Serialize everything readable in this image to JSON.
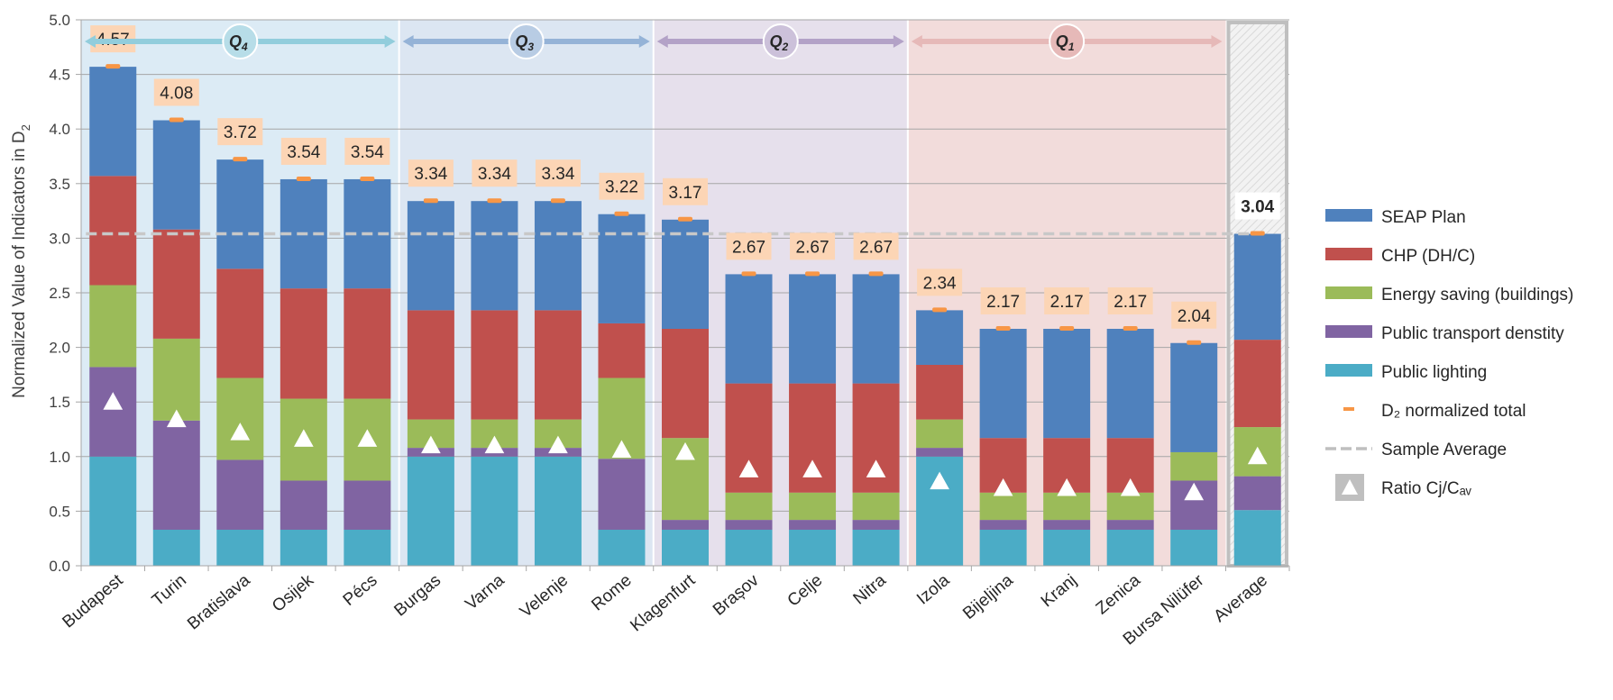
{
  "chart_data": {
    "type": "bar",
    "stacked": true,
    "ylabel_main": "Normalized Value of Indicators in D",
    "ylabel_sub": "2",
    "ylim": [
      0,
      5
    ],
    "yticks": [
      "0.0",
      "0.5",
      "1.0",
      "1.5",
      "2.0",
      "2.5",
      "3.0",
      "3.5",
      "4.0",
      "4.5",
      "5.0"
    ],
    "grid": true,
    "legend_position": "right",
    "categories": [
      "Budapest",
      "Turin",
      "Bratislava",
      "Osijek",
      "Pécs",
      "Burgas",
      "Varna",
      "Velenje",
      "Rome",
      "Klagenfurt",
      "Brașov",
      "Celje",
      "Nitra",
      "Izola",
      "Bijeljina",
      "Kranj",
      "Zenica",
      "Bursa Nilüfer",
      "Average"
    ],
    "series": [
      {
        "name": "Public lighting",
        "color": "#4bacc6",
        "values": [
          1.0,
          0.33,
          0.33,
          0.33,
          0.33,
          1.0,
          1.0,
          1.0,
          0.33,
          0.33,
          0.33,
          0.33,
          0.33,
          1.0,
          0.33,
          0.33,
          0.33,
          0.33,
          0.51
        ]
      },
      {
        "name": "Public transport denstity",
        "color": "#8064a2",
        "values": [
          0.82,
          1.0,
          0.64,
          0.45,
          0.45,
          0.08,
          0.08,
          0.08,
          0.65,
          0.09,
          0.09,
          0.09,
          0.09,
          0.08,
          0.09,
          0.09,
          0.09,
          0.45,
          0.31
        ]
      },
      {
        "name": "Energy saving (buildings)",
        "color": "#9bbb59",
        "values": [
          0.75,
          0.75,
          0.75,
          0.75,
          0.75,
          0.26,
          0.26,
          0.26,
          0.74,
          0.75,
          0.25,
          0.25,
          0.25,
          0.26,
          0.25,
          0.25,
          0.25,
          0.26,
          0.45
        ]
      },
      {
        "name": "CHP (DH/C)",
        "color": "#c0504d",
        "values": [
          1.0,
          1.0,
          1.0,
          1.01,
          1.01,
          1.0,
          1.0,
          1.0,
          0.5,
          1.0,
          1.0,
          1.0,
          1.0,
          0.5,
          0.5,
          0.5,
          0.5,
          0.0,
          0.8
        ]
      },
      {
        "name": "SEAP Plan",
        "color": "#4f81bd",
        "values": [
          1.0,
          1.0,
          1.0,
          1.0,
          1.0,
          1.0,
          1.0,
          1.0,
          1.0,
          1.0,
          1.0,
          1.0,
          1.0,
          0.5,
          1.0,
          1.0,
          1.0,
          1.0,
          0.97
        ]
      }
    ],
    "totals": [
      4.57,
      4.08,
      3.72,
      3.54,
      3.54,
      3.34,
      3.34,
      3.34,
      3.22,
      3.17,
      2.67,
      2.67,
      2.67,
      2.34,
      2.17,
      2.17,
      2.17,
      2.04,
      3.04
    ],
    "total_labels": [
      "4.57",
      "4.08",
      "3.72",
      "3.54",
      "3.54",
      "3.34",
      "3.34",
      "3.34",
      "3.22",
      "3.17",
      "2.67",
      "2.67",
      "2.67",
      "2.34",
      "2.17",
      "2.17",
      "2.17",
      "2.04",
      "3.04"
    ],
    "ratio_cj_cav": [
      1.5,
      1.34,
      1.22,
      1.16,
      1.16,
      1.1,
      1.1,
      1.1,
      1.06,
      1.04,
      0.88,
      0.88,
      0.88,
      0.77,
      0.71,
      0.71,
      0.71,
      0.67,
      1.0
    ],
    "sample_average": 3.04,
    "quartiles": [
      {
        "label": "Q",
        "sub": "4",
        "from": 0,
        "to": 4,
        "band": "#dcebf5",
        "arrow": "#92cddc",
        "circle": "#b7dde8"
      },
      {
        "label": "Q",
        "sub": "3",
        "from": 5,
        "to": 8,
        "band": "#dce6f2",
        "arrow": "#95b3d7",
        "circle": "#b8cce4"
      },
      {
        "label": "Q",
        "sub": "2",
        "from": 9,
        "to": 12,
        "band": "#e6e0ec",
        "arrow": "#b3a2c7",
        "circle": "#ccc1da"
      },
      {
        "label": "Q",
        "sub": "1",
        "from": 13,
        "to": 17,
        "band": "#f2dcdb",
        "arrow": "#e6b9b8",
        "circle": "#e6b9b8"
      }
    ],
    "legend": [
      {
        "label": "SEAP Plan",
        "kind": "box",
        "color": "#4f81bd"
      },
      {
        "label": "CHP (DH/C)",
        "kind": "box",
        "color": "#c0504d"
      },
      {
        "label": "Energy saving (buildings)",
        "kind": "box",
        "color": "#9bbb59"
      },
      {
        "label": "Public transport denstity",
        "kind": "box",
        "color": "#8064a2"
      },
      {
        "label": "Public lighting",
        "kind": "box",
        "color": "#4bacc6"
      },
      {
        "label": "D₂ normalized total",
        "kind": "dash",
        "color": "#f79646"
      },
      {
        "label": "Sample Average",
        "kind": "dashed-line",
        "color": "#bfbfbf"
      },
      {
        "label": "Ratio Cj/Cₐᵥ",
        "kind": "triangle",
        "color": "#bfbfbf"
      }
    ],
    "label_box_color": "#fcd5b5",
    "total_marker_color": "#f79646"
  }
}
